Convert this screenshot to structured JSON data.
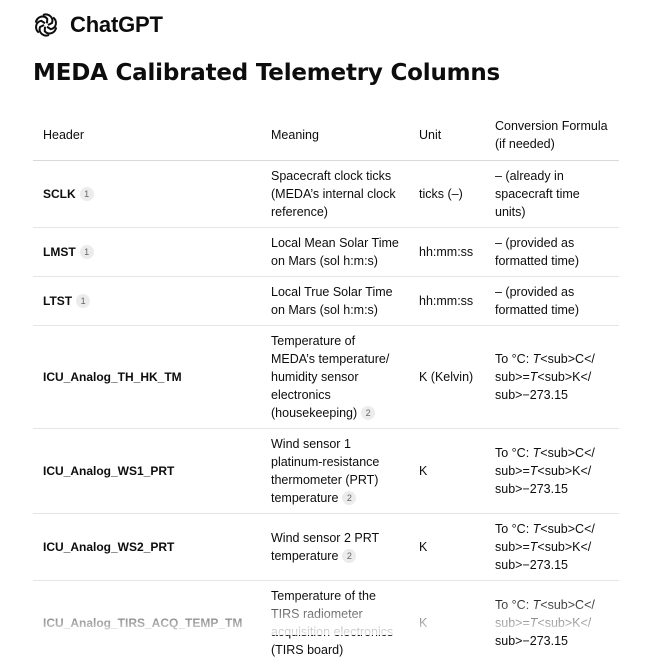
{
  "app": {
    "name": "ChatGPT",
    "logo_icon": "openai-logo-icon"
  },
  "page": {
    "title": "MEDA Calibrated Telemetry Columns"
  },
  "table": {
    "headers": {
      "header": "Header",
      "meaning": "Meaning",
      "unit": "Unit",
      "conversion": "Conversion Formula (if needed)"
    },
    "rows": [
      {
        "header": "SCLK",
        "header_cite": "1",
        "meaning": "Spacecraft clock ticks (MEDA’s internal clock reference)",
        "meaning_cite": "",
        "unit": "ticks (–)",
        "conversion": "– (already in spacecraft time units)"
      },
      {
        "header": "LMST",
        "header_cite": "1",
        "meaning": "Local Mean Solar Time on Mars (sol h:m:s)",
        "meaning_cite": "",
        "unit": "hh:mm:ss",
        "conversion": "– (provided as formatted time)"
      },
      {
        "header": "LTST",
        "header_cite": "1",
        "meaning": "Local True Solar Time on Mars (sol h:m:s)",
        "meaning_cite": "",
        "unit": "hh:mm:ss",
        "conversion": "– (provided as formatted time)"
      },
      {
        "header": "ICU_Analog_TH_HK_TM",
        "header_cite": "",
        "meaning": "Temperature of MEDA’s temperature/ humidity sensor electronics (housekeeping)",
        "meaning_cite": "2",
        "unit": "K (Kelvin)",
        "conversion_prefix": "To °C: ",
        "conversion_var1": "T",
        "conversion_mid": "<sub>C</ sub>=",
        "conversion_var2": "T",
        "conversion_suffix": "<sub>K</ sub>−273.15"
      },
      {
        "header": "ICU_Analog_WS1_PRT",
        "header_cite": "",
        "meaning": "Wind sensor 1 platinum-resistance thermometer (PRT) temperature",
        "meaning_cite": "2",
        "unit": "K",
        "conversion_prefix": "To °C: ",
        "conversion_var1": "T",
        "conversion_mid": "<sub>C</ sub>=",
        "conversion_var2": "T",
        "conversion_suffix": "<sub>K</ sub>−273.15"
      },
      {
        "header": "ICU_Analog_WS2_PRT",
        "header_cite": "",
        "meaning": "Wind sensor 2 PRT temperature",
        "meaning_cite": "2",
        "unit": "K",
        "conversion_prefix": "To °C: ",
        "conversion_var1": "T",
        "conversion_mid": "<sub>C</ sub>=",
        "conversion_var2": "T",
        "conversion_suffix": "<sub>K</ sub>−273.15"
      },
      {
        "header": "ICU_Analog_TIRS_ACQ_TEMP_TM",
        "header_cite": "",
        "meaning": "Temperature of the TIRS radiometer acquisition electronics (TIRS board)",
        "meaning_cite": "",
        "unit": "K",
        "conversion_prefix": "To °C: ",
        "conversion_var1": "T",
        "conversion_mid": "<sub>C</ sub>=",
        "conversion_var2": "T",
        "conversion_suffix": "<sub>K</ sub>−273.15"
      }
    ]
  }
}
